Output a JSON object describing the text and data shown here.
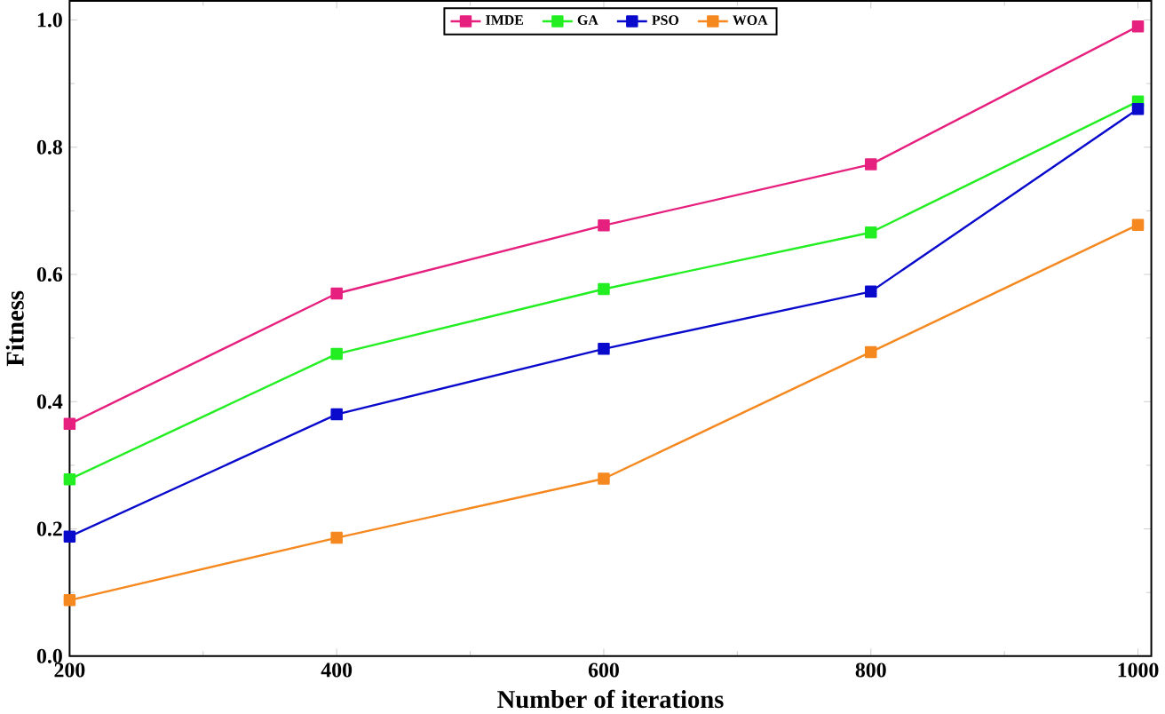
{
  "chart_data": {
    "type": "line",
    "xlabel": "Number of iterations",
    "ylabel": "Fitness",
    "x": [
      200,
      400,
      600,
      800,
      1000
    ],
    "series": [
      {
        "name": "IMDE",
        "color": "#e6207e",
        "values": [
          0.365,
          0.57,
          0.677,
          0.773,
          0.99
        ]
      },
      {
        "name": "GA",
        "color": "#22ee22",
        "values": [
          0.278,
          0.475,
          0.577,
          0.666,
          0.872
        ]
      },
      {
        "name": "PSO",
        "color": "#0a0acc",
        "values": [
          0.188,
          0.38,
          0.483,
          0.573,
          0.86
        ]
      },
      {
        "name": "WOA",
        "color": "#f5881f",
        "values": [
          0.088,
          0.186,
          0.279,
          0.478,
          0.678
        ]
      }
    ],
    "xlim": [
      200,
      1010
    ],
    "ylim": [
      0,
      1.03
    ],
    "xticks": [
      200,
      400,
      600,
      800,
      1000
    ],
    "yticks": [
      {
        "value": 0,
        "label": "0.0"
      },
      0.2,
      0.4,
      0.6,
      0.8,
      {
        "value": 1,
        "label": "1.0"
      }
    ],
    "marker": "square",
    "legend": "top",
    "grid": false
  }
}
